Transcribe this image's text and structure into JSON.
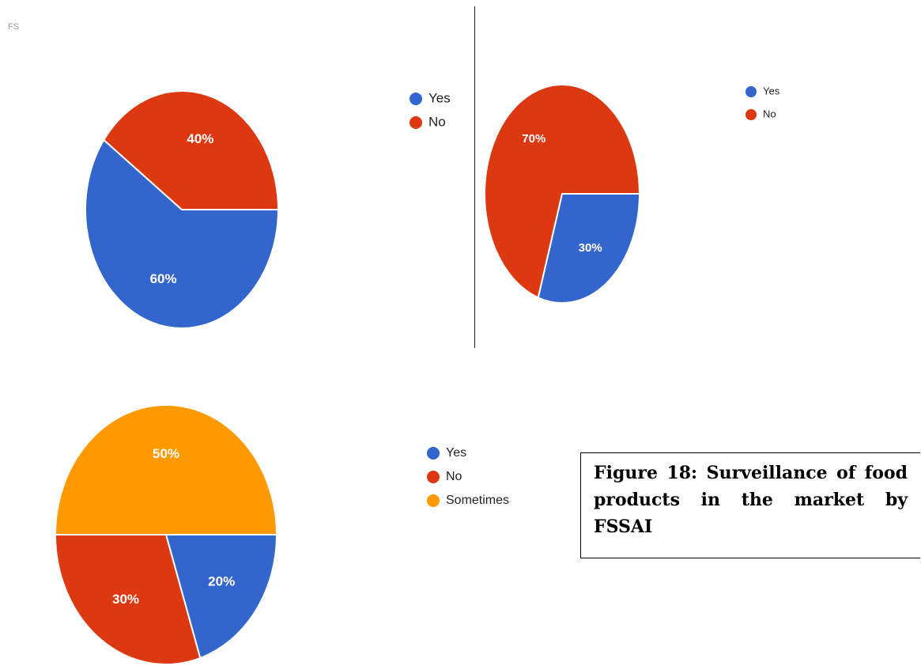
{
  "corner_text": "FS",
  "caption": "Figure 18: Surveillance of food products in the market by FSSAI",
  "colors": {
    "yes": "#3366cc",
    "no": "#dc3912",
    "sometimes": "#ff9900"
  },
  "chart_data": [
    {
      "type": "pie",
      "categories": [
        "Yes",
        "No"
      ],
      "values": [
        60,
        40
      ],
      "labels": [
        "60%",
        "40%"
      ],
      "legend": [
        "Yes",
        "No"
      ],
      "legend_position": "right"
    },
    {
      "type": "pie",
      "categories": [
        "Yes",
        "No"
      ],
      "values": [
        30,
        70
      ],
      "labels": [
        "30%",
        "70%"
      ],
      "legend": [
        "Yes",
        "No"
      ],
      "legend_position": "right"
    },
    {
      "type": "pie",
      "categories": [
        "Yes",
        "No",
        "Sometimes"
      ],
      "values": [
        20,
        30,
        50
      ],
      "labels": [
        "20%",
        "30%",
        "50%"
      ],
      "legend": [
        "Yes",
        "No",
        "Sometimes"
      ],
      "legend_position": "right"
    }
  ]
}
